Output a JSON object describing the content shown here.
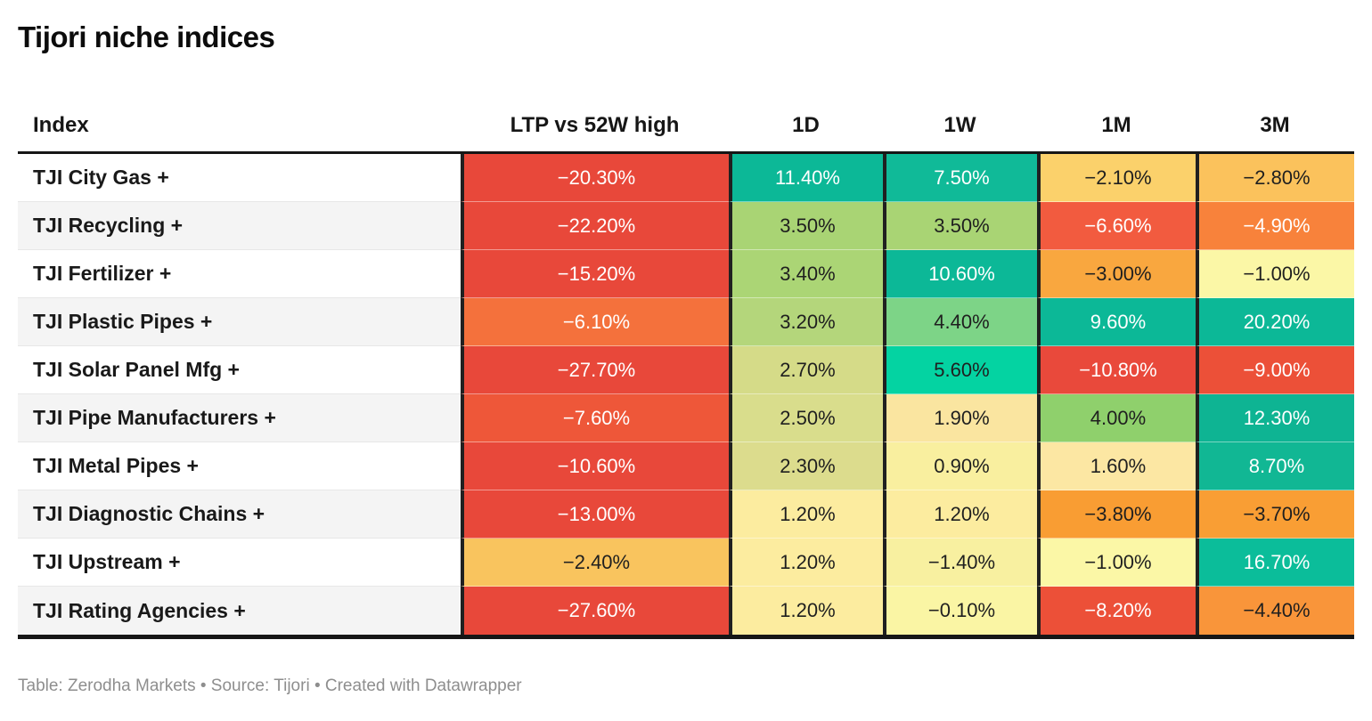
{
  "title": "Tijori niche indices",
  "footer": {
    "text": "Table: Zerodha Markets • Source: Tijori • Created with Datawrapper"
  },
  "colors": {
    "cell_text_light": "#ffffff",
    "cell_text_dark": "#1f1f1f",
    "header_text": "#161616",
    "row_alt_bg": "#f4f4f4",
    "grid_border": "#202020",
    "footer_text": "#8e8e8e",
    "positive_strong": "#0cb897",
    "negative_strong": "#e8483a"
  },
  "chart_data": {
    "type": "table",
    "title": "Tijori niche indices",
    "columns": [
      "Index",
      "LTP vs 52W high",
      "1D",
      "1W",
      "1M",
      "3M"
    ],
    "rows": [
      {
        "index": "TJI City Gas +",
        "cells": [
          {
            "v": "−20.30%",
            "bg": "#e8483a",
            "fg": "light"
          },
          {
            "v": "11.40%",
            "bg": "#0cb897",
            "fg": "light"
          },
          {
            "v": "7.50%",
            "bg": "#10ba98",
            "fg": "light"
          },
          {
            "v": "−2.10%",
            "bg": "#fbd16b",
            "fg": "dark"
          },
          {
            "v": "−2.80%",
            "bg": "#fbc25c",
            "fg": "dark"
          }
        ]
      },
      {
        "index": "TJI Recycling +",
        "cells": [
          {
            "v": "−22.20%",
            "bg": "#e8483a",
            "fg": "light"
          },
          {
            "v": "3.50%",
            "bg": "#a9d474",
            "fg": "dark"
          },
          {
            "v": "3.50%",
            "bg": "#a9d474",
            "fg": "dark"
          },
          {
            "v": "−6.60%",
            "bg": "#f25b3f",
            "fg": "light"
          },
          {
            "v": "−4.90%",
            "bg": "#f8823b",
            "fg": "light"
          }
        ]
      },
      {
        "index": "TJI Fertilizer +",
        "cells": [
          {
            "v": "−15.20%",
            "bg": "#e8483a",
            "fg": "light"
          },
          {
            "v": "3.40%",
            "bg": "#abd575",
            "fg": "dark"
          },
          {
            "v": "10.60%",
            "bg": "#0cb897",
            "fg": "light"
          },
          {
            "v": "−3.00%",
            "bg": "#f9a73f",
            "fg": "dark"
          },
          {
            "v": "−1.00%",
            "bg": "#fbf7a6",
            "fg": "dark"
          }
        ]
      },
      {
        "index": "TJI Plastic Pipes +",
        "cells": [
          {
            "v": "−6.10%",
            "bg": "#f4713c",
            "fg": "light"
          },
          {
            "v": "3.20%",
            "bg": "#b4d67b",
            "fg": "dark"
          },
          {
            "v": "4.40%",
            "bg": "#7dd487",
            "fg": "dark"
          },
          {
            "v": "9.60%",
            "bg": "#0cb897",
            "fg": "light"
          },
          {
            "v": "20.20%",
            "bg": "#0cb897",
            "fg": "light"
          }
        ]
      },
      {
        "index": "TJI Solar Panel Mfg +",
        "cells": [
          {
            "v": "−27.70%",
            "bg": "#e8483a",
            "fg": "light"
          },
          {
            "v": "2.70%",
            "bg": "#d5db88",
            "fg": "dark"
          },
          {
            "v": "5.60%",
            "bg": "#04d3a2",
            "fg": "dark"
          },
          {
            "v": "−10.80%",
            "bg": "#e9493b",
            "fg": "light"
          },
          {
            "v": "−9.00%",
            "bg": "#ec5038",
            "fg": "light"
          }
        ]
      },
      {
        "index": "TJI Pipe Manufacturers +",
        "cells": [
          {
            "v": "−7.60%",
            "bg": "#ee5739",
            "fg": "light"
          },
          {
            "v": "2.50%",
            "bg": "#d9dd8c",
            "fg": "dark"
          },
          {
            "v": "1.90%",
            "bg": "#fae5a0",
            "fg": "dark"
          },
          {
            "v": "4.00%",
            "bg": "#8fd06c",
            "fg": "dark"
          },
          {
            "v": "12.30%",
            "bg": "#0eb493",
            "fg": "light"
          }
        ]
      },
      {
        "index": "TJI Metal Pipes +",
        "cells": [
          {
            "v": "−10.60%",
            "bg": "#e8483a",
            "fg": "light"
          },
          {
            "v": "2.30%",
            "bg": "#dcdc8d",
            "fg": "dark"
          },
          {
            "v": "0.90%",
            "bg": "#f9ef9f",
            "fg": "dark"
          },
          {
            "v": "1.60%",
            "bg": "#fce7a3",
            "fg": "dark"
          },
          {
            "v": "8.70%",
            "bg": "#11b794",
            "fg": "light"
          }
        ]
      },
      {
        "index": "TJI Diagnostic Chains +",
        "cells": [
          {
            "v": "−13.00%",
            "bg": "#e8483a",
            "fg": "light"
          },
          {
            "v": "1.20%",
            "bg": "#fcec9f",
            "fg": "dark"
          },
          {
            "v": "1.20%",
            "bg": "#fcec9f",
            "fg": "dark"
          },
          {
            "v": "−3.80%",
            "bg": "#f99d33",
            "fg": "dark"
          },
          {
            "v": "−3.70%",
            "bg": "#f99e34",
            "fg": "dark"
          }
        ]
      },
      {
        "index": "TJI Upstream +",
        "cells": [
          {
            "v": "−2.40%",
            "bg": "#f9c45e",
            "fg": "dark"
          },
          {
            "v": "1.20%",
            "bg": "#fcec9f",
            "fg": "dark"
          },
          {
            "v": "−1.40%",
            "bg": "#f8f0a0",
            "fg": "dark"
          },
          {
            "v": "−1.00%",
            "bg": "#fbf7a6",
            "fg": "dark"
          },
          {
            "v": "16.70%",
            "bg": "#0bbd9a",
            "fg": "light"
          }
        ]
      },
      {
        "index": "TJI Rating Agencies +",
        "cells": [
          {
            "v": "−27.60%",
            "bg": "#e8483a",
            "fg": "light"
          },
          {
            "v": "1.20%",
            "bg": "#fcec9f",
            "fg": "dark"
          },
          {
            "v": "−0.10%",
            "bg": "#faf5a4",
            "fg": "dark"
          },
          {
            "v": "−8.20%",
            "bg": "#ec5038",
            "fg": "light"
          },
          {
            "v": "−4.40%",
            "bg": "#f9953a",
            "fg": "dark"
          }
        ]
      }
    ],
    "notes": "Table: Zerodha Markets • Source: Tijori • Created with Datawrapper"
  }
}
